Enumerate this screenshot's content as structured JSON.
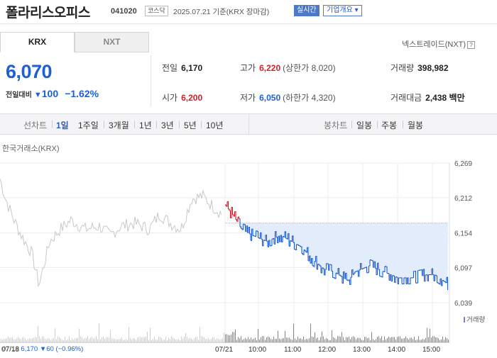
{
  "header": {
    "name": "폴라리스오피스",
    "code": "041020",
    "market": "코스닥",
    "date": "2025.07.21",
    "basis": "기준(KRX 장마감)",
    "realtime_label": "실시간",
    "overview_label": "기업개요 ▾"
  },
  "tabs": {
    "krx": "KRX",
    "nxt": "NXT"
  },
  "nextrade": "넥스트레이드(NXT)",
  "help_glyph": "?",
  "price": {
    "current": "6,070",
    "change_label": "전일대비",
    "change_amount": "100",
    "change_pct": "−1.62%",
    "down_glyph": "▼"
  },
  "stats": {
    "prev_label": "전일",
    "prev": "6,170",
    "open_label": "시가",
    "open": "6,200",
    "high_label": "고가",
    "high": "6,220",
    "upper_limit": "(상한가 8,020)",
    "low_label": "저가",
    "low": "6,050",
    "lower_limit": "(하한가 4,320)",
    "volume_label": "거래량",
    "volume": "398,982",
    "amount_label": "거래대금",
    "amount": "2,438 백만"
  },
  "periods": {
    "line_label": "선차트",
    "line": [
      "1일",
      "1주일",
      "3개월",
      "1년",
      "3년",
      "5년",
      "10년"
    ],
    "candle_label": "봉차트",
    "candle": [
      "일봉",
      "주봉",
      "월봉"
    ]
  },
  "chart_data": {
    "type": "line",
    "source": "한국거래소(KRX)",
    "y_ticks": [
      6269,
      6212,
      6154,
      6097,
      6039
    ],
    "x_ticks": [
      "07/18",
      "07/21",
      "10:00",
      "11:00",
      "12:00",
      "13:00",
      "14:00",
      "15:00"
    ],
    "reference_price": 6170,
    "volume_label": "거래량",
    "prev_day": {
      "date": "07/18",
      "close": "6,170",
      "change": "▼60",
      "pct": "(−0.96%)"
    },
    "colors": {
      "up": "#d0202c",
      "down": "#1d5fd4",
      "prev": "#c8c8c8",
      "fill": "#e3ecfa",
      "volume": "#8a7bb7"
    }
  }
}
